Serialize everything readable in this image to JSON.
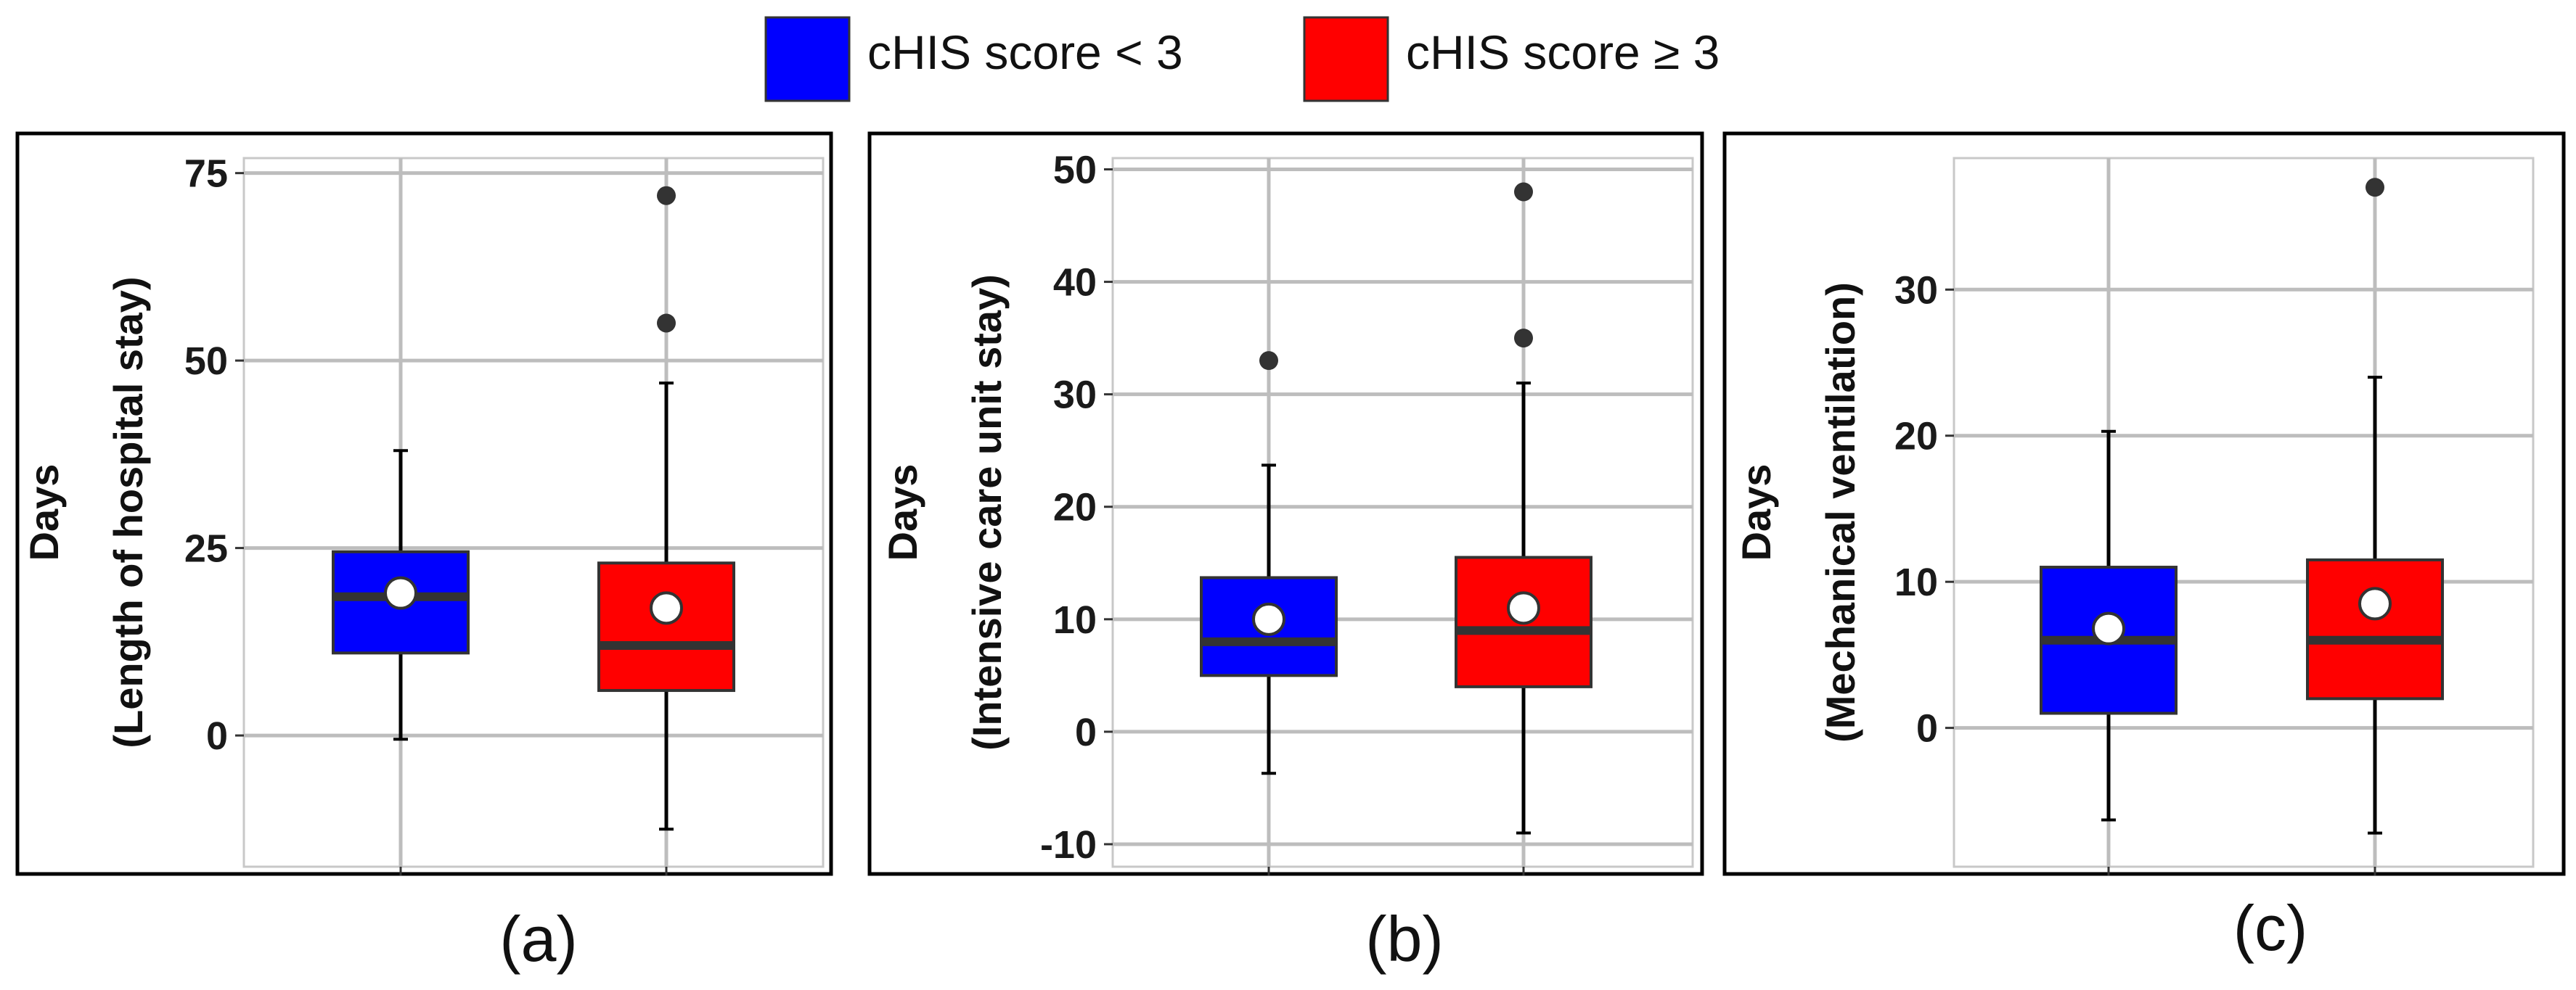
{
  "legend": {
    "items": [
      {
        "label": "cHIS score < 3",
        "color": "#0000FF"
      },
      {
        "label": "cHIS score ≥ 3",
        "color": "#FF0000"
      }
    ]
  },
  "chart_data": [
    {
      "type": "box",
      "panel_label": "(a)",
      "ylabel": [
        "Days",
        "(Length of hospital stay)"
      ],
      "ylim": [
        -17.5,
        77
      ],
      "yticks": [
        0,
        25,
        50,
        75
      ],
      "grid": true,
      "boxes": [
        {
          "group": "cHIS score < 3",
          "color": "#0000FF",
          "q1": 11,
          "median": 18.5,
          "q3": 24.5,
          "whisker_low": -0.5,
          "whisker_high": 38,
          "mean": 19,
          "outliers": []
        },
        {
          "group": "cHIS score ≥ 3",
          "color": "#FF0000",
          "q1": 6,
          "median": 12,
          "q3": 23,
          "whisker_low": -12.5,
          "whisker_high": 47,
          "mean": 17,
          "outliers": [
            55,
            72
          ]
        }
      ]
    },
    {
      "type": "box",
      "panel_label": "(b)",
      "ylabel": [
        "Days",
        "(Intensive care unit stay)"
      ],
      "ylim": [
        -12,
        51
      ],
      "yticks": [
        -10,
        0,
        10,
        20,
        30,
        40,
        50
      ],
      "grid": true,
      "boxes": [
        {
          "group": "cHIS score < 3",
          "color": "#0000FF",
          "q1": 5,
          "median": 8,
          "q3": 13.7,
          "whisker_low": -3.7,
          "whisker_high": 23.7,
          "mean": 10,
          "outliers": [
            33
          ]
        },
        {
          "group": "cHIS score ≥ 3",
          "color": "#FF0000",
          "q1": 4,
          "median": 9,
          "q3": 15.5,
          "whisker_low": -9,
          "whisker_high": 31,
          "mean": 11,
          "outliers": [
            35,
            48
          ]
        }
      ]
    },
    {
      "type": "box",
      "panel_label": "(c)",
      "ylabel": [
        "Days",
        "(Mechanical ventilation)"
      ],
      "ylim": [
        -9.5,
        39
      ],
      "yticks": [
        0,
        10,
        20,
        30
      ],
      "grid": true,
      "boxes": [
        {
          "group": "cHIS score < 3",
          "color": "#0000FF",
          "q1": 1,
          "median": 6,
          "q3": 11,
          "whisker_low": -6.3,
          "whisker_high": 20.3,
          "mean": 6.8,
          "outliers": []
        },
        {
          "group": "cHIS score ≥ 3",
          "color": "#FF0000",
          "q1": 2,
          "median": 6,
          "q3": 11.5,
          "whisker_low": -7.2,
          "whisker_high": 24,
          "mean": 8.5,
          "outliers": [
            37
          ]
        }
      ]
    }
  ]
}
